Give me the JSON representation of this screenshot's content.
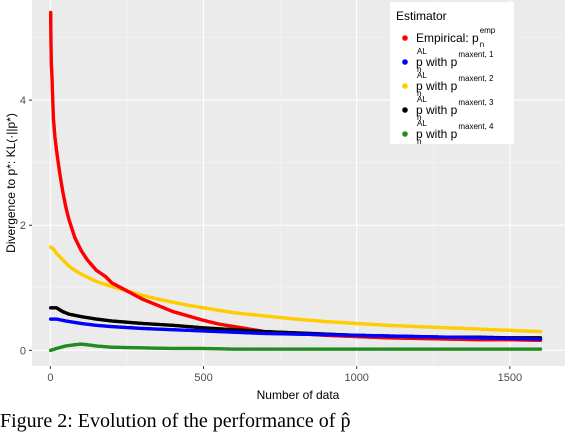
{
  "chart_data": {
    "type": "scatter",
    "title": "",
    "xlabel": "Number of data",
    "ylabel": "Divergence to p*: KL(·||p*)",
    "xlim": [
      -60,
      1680
    ],
    "ylim": [
      -0.25,
      5.6
    ],
    "x_ticks": [
      0,
      500,
      1000,
      1500
    ],
    "y_ticks": [
      0,
      2,
      4
    ],
    "x_tick_labels": [
      "0",
      "500",
      "1000",
      "1500"
    ],
    "y_tick_labels": [
      "0",
      "2",
      "4"
    ],
    "grid": true,
    "legend_position": "top-right",
    "legend_title": "Estimator",
    "series": [
      {
        "name": "Empirical: p_n^emp",
        "color": "#ff0000",
        "points": [
          [
            1,
            5.4
          ],
          [
            2,
            4.9
          ],
          [
            3,
            4.6
          ],
          [
            4,
            4.5
          ],
          [
            5,
            4.4
          ],
          [
            7,
            4.1
          ],
          [
            10,
            3.7
          ],
          [
            15,
            3.4
          ],
          [
            20,
            3.2
          ],
          [
            30,
            2.85
          ],
          [
            40,
            2.55
          ],
          [
            50,
            2.3
          ],
          [
            60,
            2.1
          ],
          [
            70,
            1.95
          ],
          [
            80,
            1.8
          ],
          [
            100,
            1.6
          ],
          [
            120,
            1.45
          ],
          [
            150,
            1.28
          ],
          [
            180,
            1.18
          ],
          [
            200,
            1.08
          ],
          [
            250,
            0.95
          ],
          [
            300,
            0.82
          ],
          [
            350,
            0.72
          ],
          [
            400,
            0.62
          ],
          [
            450,
            0.55
          ],
          [
            500,
            0.48
          ],
          [
            550,
            0.42
          ],
          [
            600,
            0.38
          ],
          [
            650,
            0.34
          ],
          [
            700,
            0.3
          ],
          [
            800,
            0.27
          ],
          [
            900,
            0.24
          ],
          [
            1000,
            0.22
          ],
          [
            1100,
            0.2
          ],
          [
            1200,
            0.19
          ],
          [
            1300,
            0.18
          ],
          [
            1400,
            0.17
          ],
          [
            1500,
            0.17
          ],
          [
            1600,
            0.16
          ]
        ]
      },
      {
        "name": "p̂_n^L with p^maxent,1",
        "color": "#0000ff",
        "points": [
          [
            1,
            0.5
          ],
          [
            20,
            0.5
          ],
          [
            50,
            0.47
          ],
          [
            100,
            0.43
          ],
          [
            150,
            0.4
          ],
          [
            200,
            0.38
          ],
          [
            300,
            0.35
          ],
          [
            400,
            0.33
          ],
          [
            500,
            0.31
          ],
          [
            600,
            0.29
          ],
          [
            700,
            0.27
          ],
          [
            800,
            0.26
          ],
          [
            900,
            0.25
          ],
          [
            1000,
            0.24
          ],
          [
            1100,
            0.23
          ],
          [
            1200,
            0.22
          ],
          [
            1300,
            0.21
          ],
          [
            1400,
            0.2
          ],
          [
            1500,
            0.19
          ],
          [
            1600,
            0.18
          ]
        ]
      },
      {
        "name": "p̂_n^L with p^maxent,2",
        "color": "#ffcc00",
        "points": [
          [
            1,
            1.65
          ],
          [
            10,
            1.62
          ],
          [
            20,
            1.55
          ],
          [
            40,
            1.45
          ],
          [
            60,
            1.35
          ],
          [
            80,
            1.28
          ],
          [
            100,
            1.22
          ],
          [
            150,
            1.1
          ],
          [
            200,
            1.02
          ],
          [
            250,
            0.95
          ],
          [
            300,
            0.88
          ],
          [
            350,
            0.82
          ],
          [
            400,
            0.77
          ],
          [
            450,
            0.72
          ],
          [
            500,
            0.68
          ],
          [
            600,
            0.6
          ],
          [
            700,
            0.55
          ],
          [
            800,
            0.5
          ],
          [
            900,
            0.46
          ],
          [
            1000,
            0.43
          ],
          [
            1100,
            0.4
          ],
          [
            1200,
            0.38
          ],
          [
            1300,
            0.36
          ],
          [
            1400,
            0.34
          ],
          [
            1500,
            0.32
          ],
          [
            1600,
            0.3
          ]
        ]
      },
      {
        "name": "p̂_n^L with p^maxent,3",
        "color": "#000000",
        "points": [
          [
            1,
            0.68
          ],
          [
            20,
            0.68
          ],
          [
            40,
            0.62
          ],
          [
            60,
            0.58
          ],
          [
            100,
            0.54
          ],
          [
            150,
            0.5
          ],
          [
            200,
            0.47
          ],
          [
            300,
            0.43
          ],
          [
            400,
            0.4
          ],
          [
            500,
            0.36
          ],
          [
            600,
            0.33
          ],
          [
            700,
            0.3
          ],
          [
            800,
            0.28
          ],
          [
            900,
            0.26
          ],
          [
            1000,
            0.24
          ],
          [
            1100,
            0.23
          ],
          [
            1200,
            0.22
          ],
          [
            1300,
            0.21
          ],
          [
            1400,
            0.21
          ],
          [
            1500,
            0.2
          ],
          [
            1600,
            0.2
          ]
        ]
      },
      {
        "name": "p̂_n^L with p^maxent,4",
        "color": "#228b22",
        "points": [
          [
            1,
            0.0
          ],
          [
            20,
            0.03
          ],
          [
            50,
            0.07
          ],
          [
            80,
            0.09
          ],
          [
            100,
            0.1
          ],
          [
            120,
            0.09
          ],
          [
            150,
            0.07
          ],
          [
            200,
            0.05
          ],
          [
            300,
            0.04
          ],
          [
            400,
            0.03
          ],
          [
            500,
            0.03
          ],
          [
            600,
            0.02
          ],
          [
            800,
            0.02
          ],
          [
            1000,
            0.02
          ],
          [
            1200,
            0.02
          ],
          [
            1400,
            0.02
          ],
          [
            1600,
            0.02
          ]
        ]
      }
    ]
  },
  "legend": {
    "title": "Estimator",
    "items": [
      {
        "label": "Empirical: p",
        "sub": "n",
        "sup": "emp",
        "color": "#ff0000"
      },
      {
        "label": "p with p",
        "hat": "AL",
        "sub": "n",
        "sup": "maxent, 1",
        "color": "#0000ff"
      },
      {
        "label": "p with p",
        "hat": "AL",
        "sub": "n",
        "sup": "maxent, 2",
        "color": "#ffcc00"
      },
      {
        "label": "p with p",
        "hat": "AL",
        "sub": "n",
        "sup": "maxent, 3",
        "color": "#000000"
      },
      {
        "label": "p with p",
        "hat": "AL",
        "sub": "n",
        "sup": "maxent, 4",
        "color": "#228b22"
      }
    ]
  },
  "caption": "Figure 2: Evolution of the performance of p̂"
}
